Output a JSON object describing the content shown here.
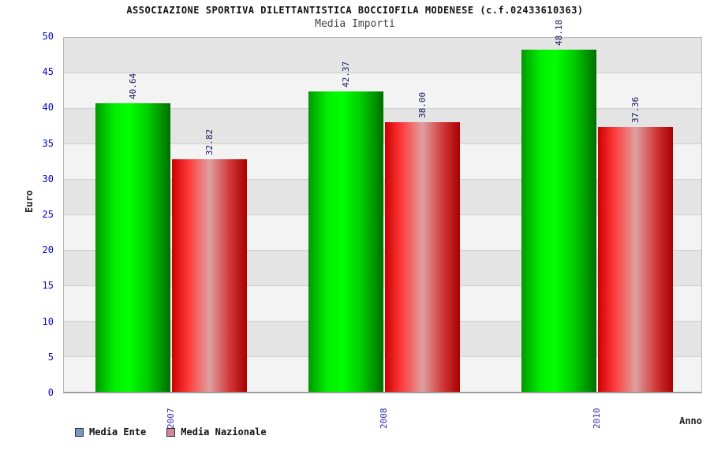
{
  "title": "ASSOCIAZIONE SPORTIVA DILETTANTISTICA BOCCIOFILA MODENESE (c.f.02433610363)",
  "subtitle": "Media Importi",
  "chart_data": {
    "type": "bar",
    "categories": [
      "2007",
      "2008",
      "2010"
    ],
    "series": [
      {
        "name": "Media Ente",
        "values": [
          40.64,
          42.37,
          48.18
        ],
        "gradient": [
          [
            "0%",
            "#009900"
          ],
          [
            "25%",
            "#00ee00"
          ],
          [
            "45%",
            "#00ff00"
          ],
          [
            "70%",
            "#00cc00"
          ],
          [
            "100%",
            "#006e00"
          ]
        ]
      },
      {
        "name": "Media Nazionale",
        "values": [
          32.82,
          38.0,
          37.36
        ],
        "gradient": [
          [
            "0%",
            "#cc0000"
          ],
          [
            "22%",
            "#ff3a3a"
          ],
          [
            "50%",
            "#dfa0a0"
          ],
          [
            "78%",
            "#d03535"
          ],
          [
            "100%",
            "#a80000"
          ]
        ]
      }
    ],
    "title": "Media Importi",
    "xlabel": "Anno",
    "ylabel": "Euro",
    "ylim": [
      0,
      50
    ],
    "ytick_step": 5,
    "grid": true,
    "legend_position": "bottom-left"
  },
  "legend": {
    "items": [
      {
        "label": "Media Ente",
        "swatch": "#7b96c8"
      },
      {
        "label": "Media Nazionale",
        "swatch": "#d4849c"
      }
    ]
  },
  "colors": {
    "ytick_text": "#0000cc",
    "year_text": "#2a2ab0",
    "value_text": "#14145e",
    "band_light": "#f3f3f3",
    "band_dark": "#e4e4e4"
  }
}
